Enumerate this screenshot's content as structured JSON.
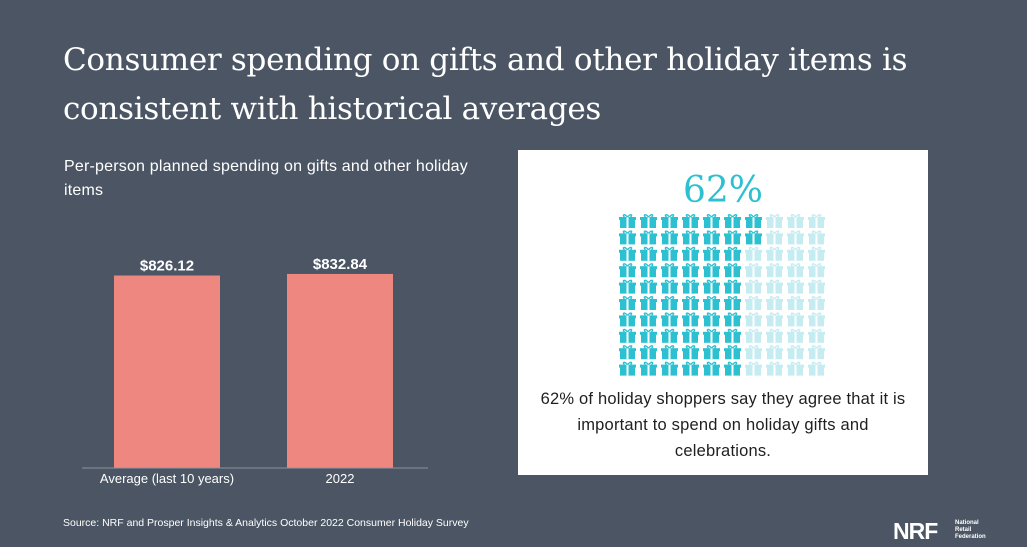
{
  "headline": "Consumer spending on gifts and other holiday items is consistent with historical averages",
  "colors": {
    "background": "#4b5564",
    "bar": "#ef8781",
    "accent": "#2cc0d1",
    "icon_faded": "#c5ecf1"
  },
  "chart_data": {
    "type": "bar",
    "title": "Per-person planned spending on gifts and other holiday items",
    "categories": [
      "Average (last 10 years)",
      "2022"
    ],
    "values": [
      826.12,
      832.84
    ],
    "value_labels": [
      "$826.12",
      "$832.84"
    ],
    "xlabel": "",
    "ylabel": "",
    "ylim": [
      0,
      1000
    ],
    "grid": false,
    "legend": "none"
  },
  "stat": {
    "percent_label": "62%",
    "percent_value": 62,
    "icon_name": "gift-icon",
    "caption": "62% of holiday shoppers say they agree that it is important to spend on holiday gifts and celebrations."
  },
  "source": "Source: NRF and Prosper Insights & Analytics October 2022 Consumer Holiday Survey",
  "logo": {
    "mark": "NRF",
    "text_line1": "National",
    "text_line2": "Retail",
    "text_line3": "Federation"
  }
}
